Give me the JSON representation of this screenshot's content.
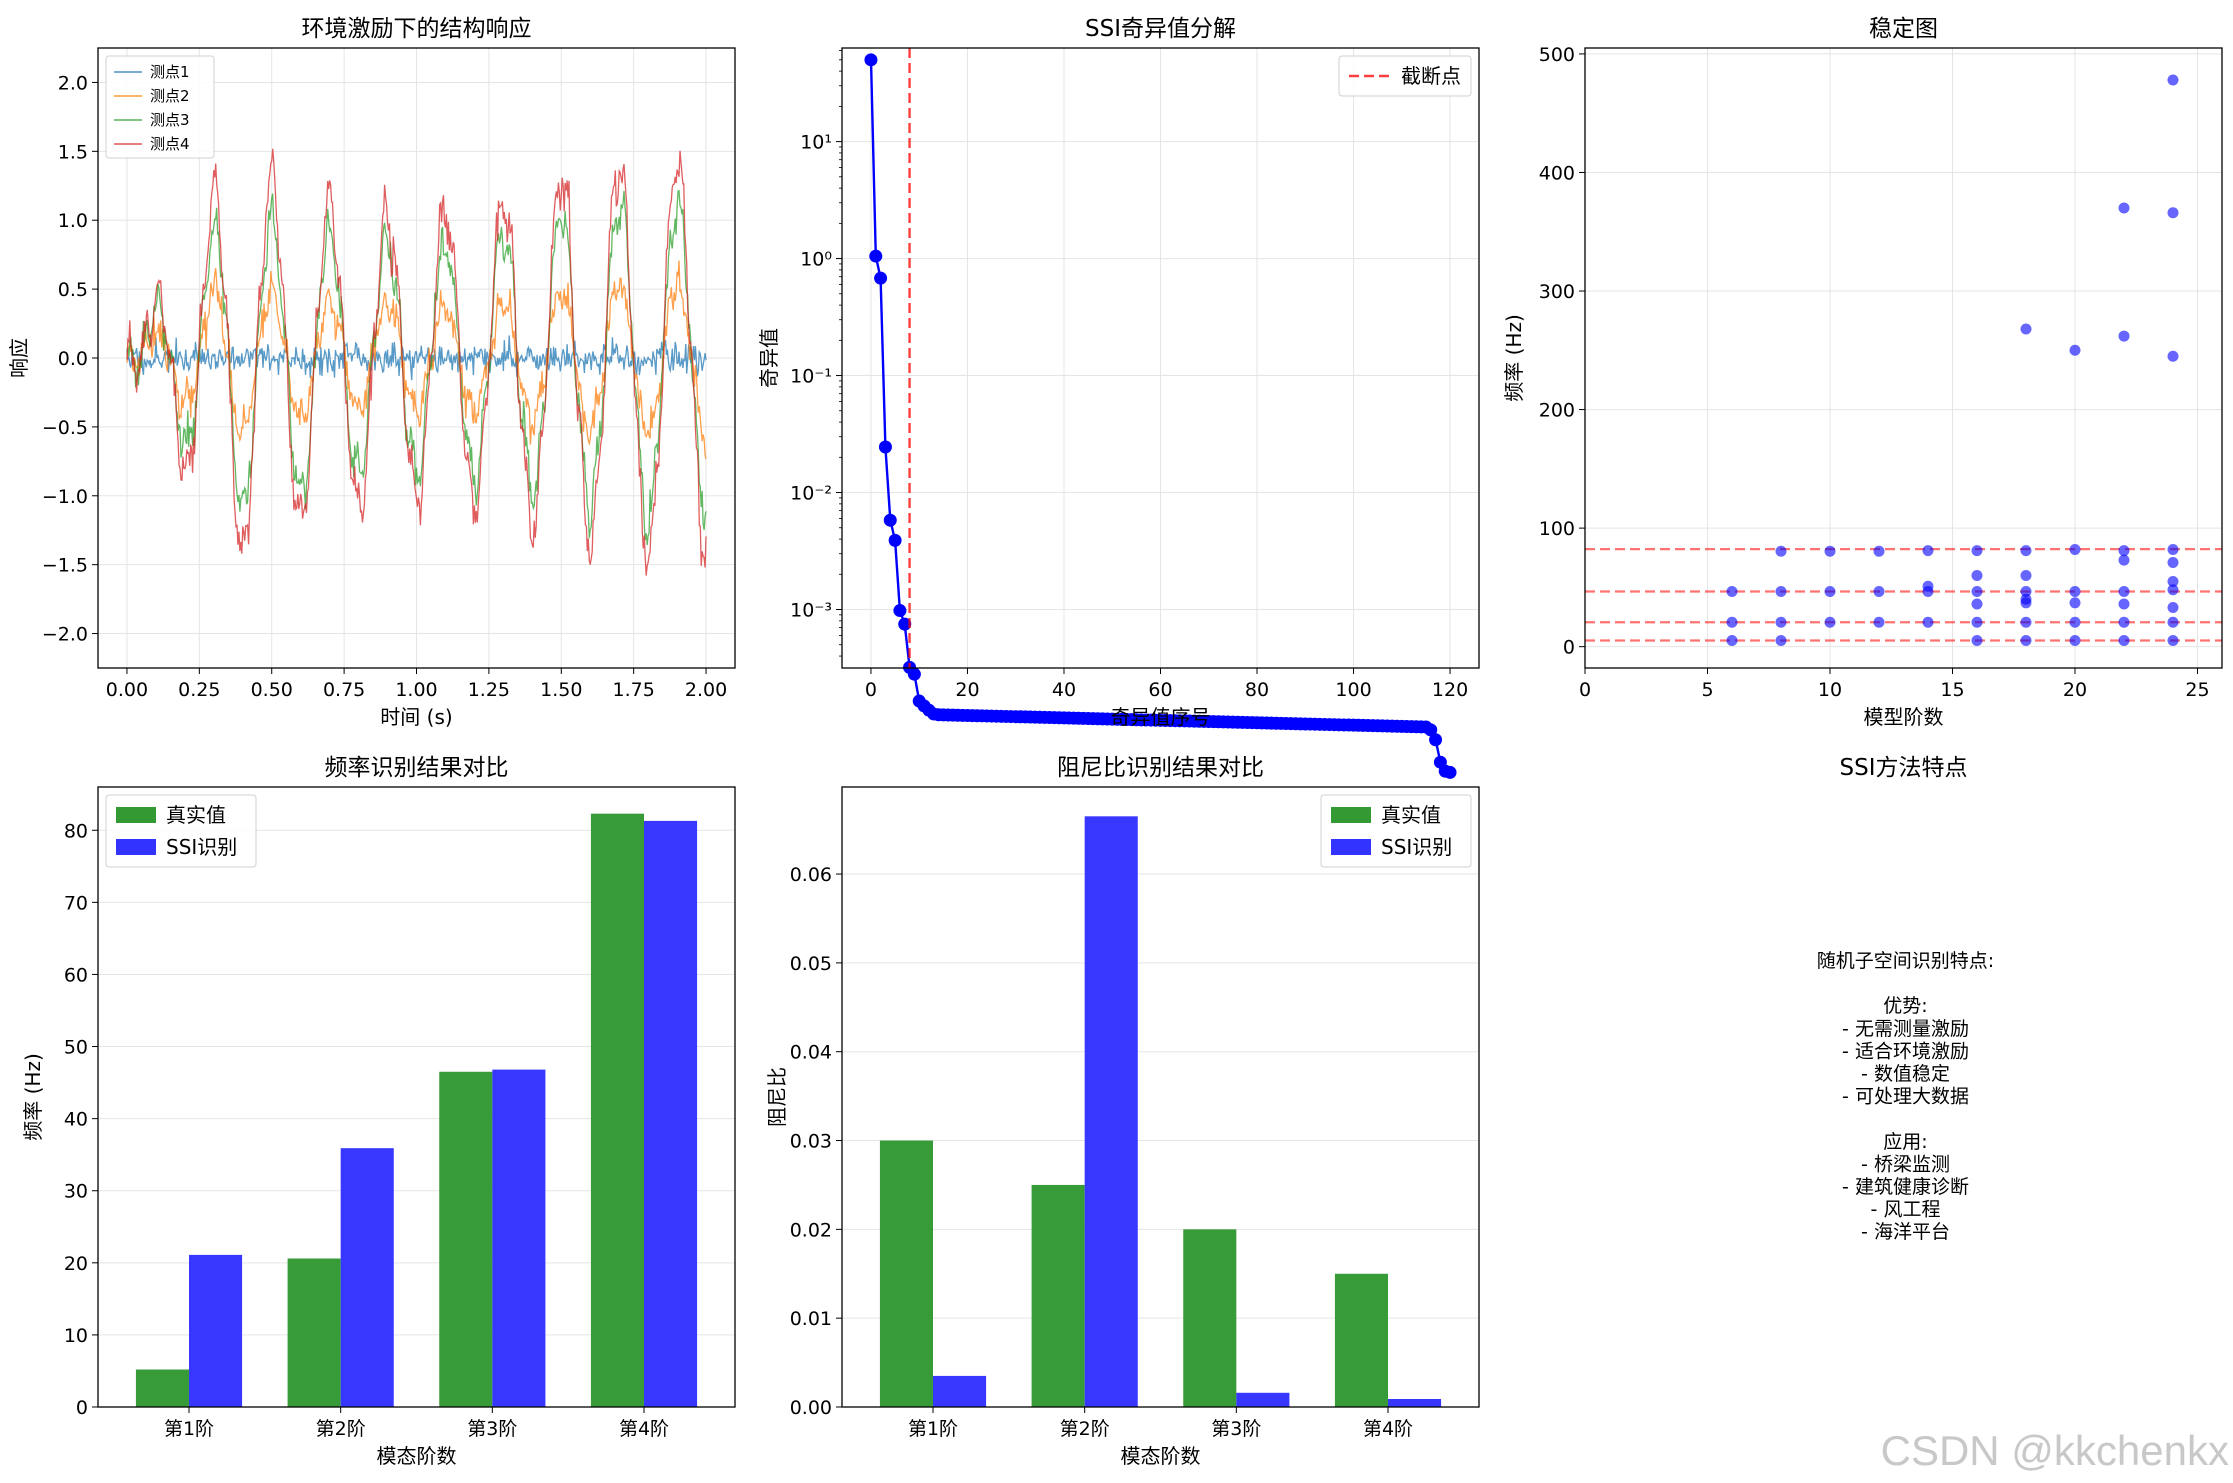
{
  "watermark": "CSDN @kkchenkx",
  "colors": {
    "grid": "#e5e5e5",
    "blue": "#0000ff",
    "red": "#ff0000",
    "bar_true": "#339933",
    "bar_ssi": "#3333ff",
    "s1": "#1f77b4",
    "s2": "#ff7f0e",
    "s3": "#2ca02c",
    "s4": "#d62728"
  },
  "chart_data": [
    {
      "id": "response",
      "type": "line",
      "title": "环境激励下的结构响应",
      "xlabel": "时间 (s)",
      "ylabel": "响应",
      "xlim": [
        -0.1,
        2.1
      ],
      "ylim": [
        -2.25,
        2.25
      ],
      "xticks": [
        0,
        0.25,
        0.5,
        0.75,
        1.0,
        1.25,
        1.5,
        1.75,
        2.0
      ],
      "xticklabels": [
        "0.00",
        "0.25",
        "0.50",
        "0.75",
        "1.00",
        "1.25",
        "1.50",
        "1.75",
        "2.00"
      ],
      "yticks": [
        -2.0,
        -1.5,
        -1.0,
        -0.5,
        0.0,
        0.5,
        1.0,
        1.5,
        2.0
      ],
      "yticklabels": [
        "−2.0",
        "−1.5",
        "−1.0",
        "−0.5",
        "0.0",
        "0.5",
        "1.0",
        "1.5",
        "2.0"
      ],
      "legend": "top-left",
      "series": [
        {
          "name": "测点1",
          "color": "#1f77b4",
          "amp": 0.0,
          "noise": 0.05,
          "seed": 11
        },
        {
          "name": "测点2",
          "color": "#ff7f0e",
          "amp": 0.55,
          "noise": 0.06,
          "seed": 22
        },
        {
          "name": "测点3",
          "color": "#2ca02c",
          "amp": 1.15,
          "noise": 0.06,
          "seed": 33
        },
        {
          "name": "测点4",
          "color": "#d62728",
          "amp": 1.45,
          "noise": 0.07,
          "seed": 44
        }
      ],
      "signal": {
        "freq_hz": 5.0,
        "freq2_hz": 20.5,
        "amp2": 0.15,
        "t_end": 2.0,
        "n": 600
      }
    },
    {
      "id": "singular",
      "type": "line",
      "yscale": "log",
      "title": "SSI奇异值分解",
      "xlabel": "奇异值序号",
      "ylabel": "奇异值",
      "xlim": [
        -6,
        126
      ],
      "ylog_range": [
        -3.5,
        1.8
      ],
      "xticks": [
        0,
        20,
        40,
        60,
        80,
        100,
        120
      ],
      "ytick_exp": [
        1,
        0,
        -1,
        -2,
        -3
      ],
      "yticklabels": [
        "10¹",
        "10⁰",
        "10⁻¹",
        "10⁻²",
        "10⁻³"
      ],
      "legend_label": "截断点",
      "cutoff": 8,
      "head_values": [
        50,
        1.05,
        0.68,
        0.0245,
        0.0058,
        0.0039,
        0.00098,
        0.00075,
        0.00032,
        0.00028,
        0.000165,
        0.00015,
        0.000138,
        0.000128
      ],
      "plateau_start": 0.000126,
      "plateau_end": 9.9e-05,
      "plateau_until": 116,
      "tail_values": [
        9.35e-05,
        7.7e-05,
        4.95e-05,
        4.15e-05,
        4.05e-05
      ],
      "n": 121
    },
    {
      "id": "stability",
      "type": "scatter",
      "title": "稳定图",
      "xlabel": "模型阶数",
      "ylabel": "频率 (Hz)",
      "xlim": [
        0,
        26
      ],
      "ylim": [
        -18,
        505
      ],
      "xticks": [
        0,
        5,
        10,
        15,
        20,
        25
      ],
      "yticks": [
        0,
        100,
        200,
        300,
        400,
        500
      ],
      "hlines": [
        5.2,
        20.6,
        46.5,
        82.3
      ],
      "points": [
        [
          6,
          5.2
        ],
        [
          6,
          20.6
        ],
        [
          6,
          46.5
        ],
        [
          8,
          5.2
        ],
        [
          8,
          20.6
        ],
        [
          8,
          46.5
        ],
        [
          8,
          80.5
        ],
        [
          10,
          20.6
        ],
        [
          10,
          46.5
        ],
        [
          10,
          80.5
        ],
        [
          12,
          20.6
        ],
        [
          12,
          46.5
        ],
        [
          12,
          80.5
        ],
        [
          14,
          20.6
        ],
        [
          14,
          46.5
        ],
        [
          14,
          51
        ],
        [
          14,
          81
        ],
        [
          16,
          5.2
        ],
        [
          16,
          20.6
        ],
        [
          16,
          36
        ],
        [
          16,
          46.5
        ],
        [
          16,
          60
        ],
        [
          16,
          81
        ],
        [
          18,
          5.2
        ],
        [
          18,
          20.6
        ],
        [
          18,
          37
        ],
        [
          18,
          40
        ],
        [
          18,
          46.5
        ],
        [
          18,
          60
        ],
        [
          18,
          81
        ],
        [
          18,
          268
        ],
        [
          20,
          5.2
        ],
        [
          20,
          20.6
        ],
        [
          20,
          37
        ],
        [
          20,
          46.5
        ],
        [
          20,
          82
        ],
        [
          20,
          250
        ],
        [
          22,
          5.2
        ],
        [
          22,
          20.6
        ],
        [
          22,
          36
        ],
        [
          22,
          46.5
        ],
        [
          22,
          73
        ],
        [
          22,
          81
        ],
        [
          22,
          262
        ],
        [
          22,
          370
        ],
        [
          24,
          5.2
        ],
        [
          24,
          20.6
        ],
        [
          24,
          33
        ],
        [
          24,
          48
        ],
        [
          24,
          55
        ],
        [
          24,
          71
        ],
        [
          24,
          82
        ],
        [
          24,
          245
        ],
        [
          24,
          366
        ],
        [
          24,
          478
        ]
      ]
    },
    {
      "id": "freq",
      "type": "bar",
      "title": "频率识别结果对比",
      "xlabel": "模态阶数",
      "ylabel": "频率 (Hz)",
      "categories": [
        "第1阶",
        "第2阶",
        "第3阶",
        "第4阶"
      ],
      "ylim": [
        0,
        86
      ],
      "yticks": [
        0,
        10,
        20,
        30,
        40,
        50,
        60,
        70,
        80
      ],
      "legend": "top-left",
      "series": [
        {
          "name": "真实值",
          "values": [
            5.2,
            20.6,
            46.5,
            82.3
          ]
        },
        {
          "name": "SSI识别",
          "values": [
            21.1,
            35.9,
            46.8,
            81.3
          ]
        }
      ]
    },
    {
      "id": "damping",
      "type": "bar",
      "title": "阻尼比识别结果对比",
      "xlabel": "模态阶数",
      "ylabel": "阻尼比",
      "categories": [
        "第1阶",
        "第2阶",
        "第3阶",
        "第4阶"
      ],
      "ylim": [
        0,
        0.0698
      ],
      "yticks": [
        0,
        0.01,
        0.02,
        0.03,
        0.04,
        0.05,
        0.06
      ],
      "yticklabels": [
        "0.00",
        "0.01",
        "0.02",
        "0.03",
        "0.04",
        "0.05",
        "0.06"
      ],
      "legend": "top-right",
      "series": [
        {
          "name": "真实值",
          "values": [
            0.03,
            0.025,
            0.02,
            0.015
          ]
        },
        {
          "name": "SSI识别",
          "values": [
            0.0035,
            0.0665,
            0.0016,
            0.0009
          ]
        }
      ]
    }
  ],
  "features": {
    "title": "SSI方法特点",
    "lines": [
      "随机子空间识别特点:",
      "",
      "优势:",
      "- 无需测量激励",
      "- 适合环境激励",
      "- 数值稳定",
      "- 可处理大数据",
      "",
      "应用:",
      "- 桥梁监测",
      "- 建筑健康诊断",
      "- 风工程",
      "- 海洋平台"
    ]
  }
}
